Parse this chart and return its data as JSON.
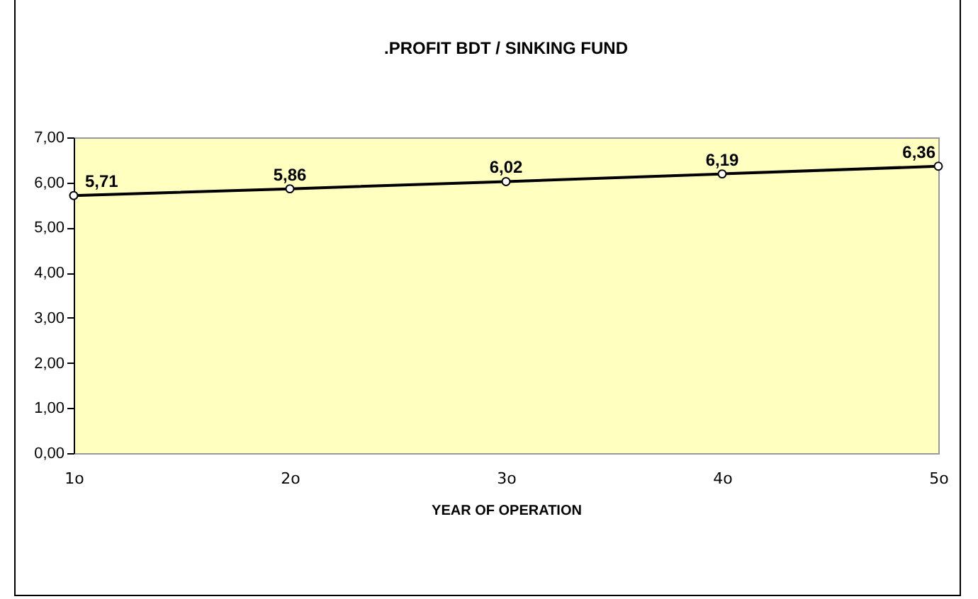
{
  "chart_data": {
    "type": "line",
    "title": ".PROFIT BDT / SINKING FUND",
    "xlabel": "YEAR OF OPERATION",
    "categories": [
      "1o",
      "2o",
      "3o",
      "4o",
      "5o"
    ],
    "series": [
      {
        "color": "#000000",
        "values": [
          5.71,
          5.86,
          6.02,
          6.19,
          6.36
        ],
        "value_labels": [
          "5,71",
          "5,86",
          "6,02",
          "6,19",
          "6,36"
        ]
      }
    ],
    "ylim": [
      0,
      7
    ],
    "yticks": [
      {
        "value": 0,
        "label": "0,00"
      },
      {
        "value": 1,
        "label": "1,00"
      },
      {
        "value": 2,
        "label": "2,00"
      },
      {
        "value": 3,
        "label": "3,00"
      },
      {
        "value": 4,
        "label": "4,00"
      },
      {
        "value": 5,
        "label": "5,00"
      },
      {
        "value": 6,
        "label": "6,00"
      },
      {
        "value": 7,
        "label": "7,00"
      }
    ],
    "grid": false,
    "legend": false,
    "marker": "circle",
    "line_style": "solid"
  }
}
